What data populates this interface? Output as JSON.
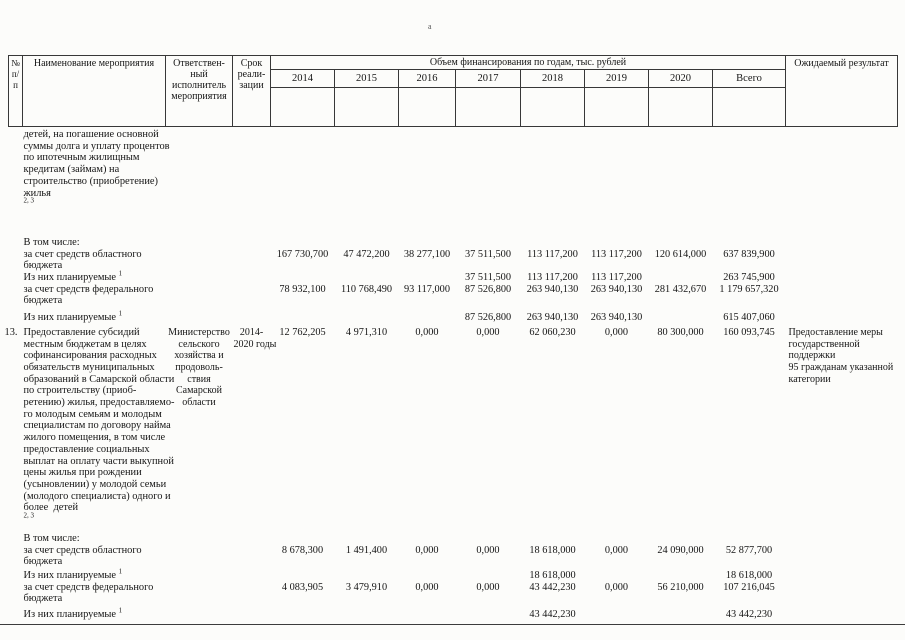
{
  "page": {
    "top_mark": "а"
  },
  "header": {
    "col_num": "№ п/п",
    "col_name": "Наименование мероприятия",
    "col_executor": "Ответствен-\nный\nисполнитель\nмероприятия",
    "col_term": "Срок\nреали-\nзации",
    "financing_title": "Объем финансирования по годам, тыс. рублей",
    "years": [
      "2014",
      "2015",
      "2016",
      "2017",
      "2018",
      "2019",
      "2020",
      "Всего"
    ],
    "col_result": "Ожидаемый результат"
  },
  "rows": [
    {
      "num": "",
      "name": "детей, на погашение основной\nсуммы долга и уплату процентов\nпо ипотечным жилищным\nкредитам (займам) на\nстроительство (приобретение)\nжилья ",
      "sup": "2, 3",
      "executor": "",
      "term": "",
      "values": [
        "",
        "",
        "",
        "",
        "",
        "",
        "",
        ""
      ],
      "result": ""
    },
    {
      "num": "",
      "name": "В том числе:",
      "sup": "",
      "executor": "",
      "term": "",
      "values": [
        "",
        "",
        "",
        "",
        "",
        "",
        "",
        ""
      ],
      "result": ""
    },
    {
      "num": "",
      "name": "за счет средств областного\nбюджета",
      "sup": "",
      "executor": "",
      "term": "",
      "values": [
        "167 730,700",
        "47 472,200",
        "38 277,100",
        "37 511,500",
        "113 117,200",
        "113 117,200",
        "120 614,000",
        "637 839,900"
      ],
      "result": ""
    },
    {
      "num": "",
      "name": "Из них планируемые ",
      "sup": "1",
      "executor": "",
      "term": "",
      "values": [
        "",
        "",
        "",
        "37 511,500",
        "113 117,200",
        "113 117,200",
        "",
        "263 745,900"
      ],
      "result": ""
    },
    {
      "num": "",
      "name": "за счет средств федерального\nбюджета",
      "sup": "",
      "executor": "",
      "term": "",
      "values": [
        "78 932,100",
        "110 768,490",
        "93 117,000",
        "87 526,800",
        "263 940,130",
        "263 940,130",
        "281 432,670",
        "1 179 657,320"
      ],
      "result": ""
    },
    {
      "num": "",
      "name": "Из них планируемые ",
      "sup": "1",
      "executor": "",
      "term": "",
      "values": [
        "",
        "",
        "",
        "87 526,800",
        "263 940,130",
        "263 940,130",
        "",
        "615 407,060"
      ],
      "result": ""
    },
    {
      "num": "13.",
      "name": "Предоставление субсидий\nместным бюджетам в целях\nсофинансирования расходных\nобязательств муниципальных\nобразований в Самарской области\nпо строительству (приоб-\nретению) жилья, предоставляемо-\nго молодым семьям и молодым\nспециалистам по договору найма\nжилого помещения, в том числе\nпредоставление социальных\nвыплат на оплату части выкупной\nцены жилья при рождении\n(усыновлении) у молодой семьи\n(молодого специалиста) одного и\nболее  детей ",
      "sup": "2, 3",
      "executor": "Министерство\nсельского\nхозяйства и\nпродоволь-\nствия\nСамарской\nобласти",
      "term": "2014-\n2020 годы",
      "values": [
        "12 762,205",
        "4 971,310",
        "0,000",
        "0,000",
        "62 060,230",
        "0,000",
        "80 300,000",
        "160 093,745"
      ],
      "result": "Предоставление меры\nгосударственной\nподдержки\n95 гражданам указанной\nкатегории"
    },
    {
      "num": "",
      "name": "В том числе:",
      "sup": "",
      "executor": "",
      "term": "",
      "values": [
        "",
        "",
        "",
        "",
        "",
        "",
        "",
        ""
      ],
      "result": ""
    },
    {
      "num": "",
      "name": "за счет средств областного\nбюджета",
      "sup": "",
      "executor": "",
      "term": "",
      "values": [
        "8 678,300",
        "1 491,400",
        "0,000",
        "0,000",
        "18 618,000",
        "0,000",
        "24 090,000",
        "52 877,700"
      ],
      "result": ""
    },
    {
      "num": "",
      "name": "Из них планируемые ",
      "sup": "1",
      "executor": "",
      "term": "",
      "values": [
        "",
        "",
        "",
        "",
        "18 618,000",
        "",
        "",
        "18 618,000"
      ],
      "result": ""
    },
    {
      "num": "",
      "name": "за счет средств федерального\nбюджета",
      "sup": "",
      "executor": "",
      "term": "",
      "values": [
        "4 083,905",
        "3 479,910",
        "0,000",
        "0,000",
        "43 442,230",
        "0,000",
        "56 210,000",
        "107 216,045"
      ],
      "result": ""
    },
    {
      "num": "",
      "name": "Из них планируемые ",
      "sup": "1",
      "executor": "",
      "term": "",
      "values": [
        "",
        "",
        "",
        "",
        "43 442,230",
        "",
        "",
        "43 442,230"
      ],
      "result": ""
    }
  ]
}
